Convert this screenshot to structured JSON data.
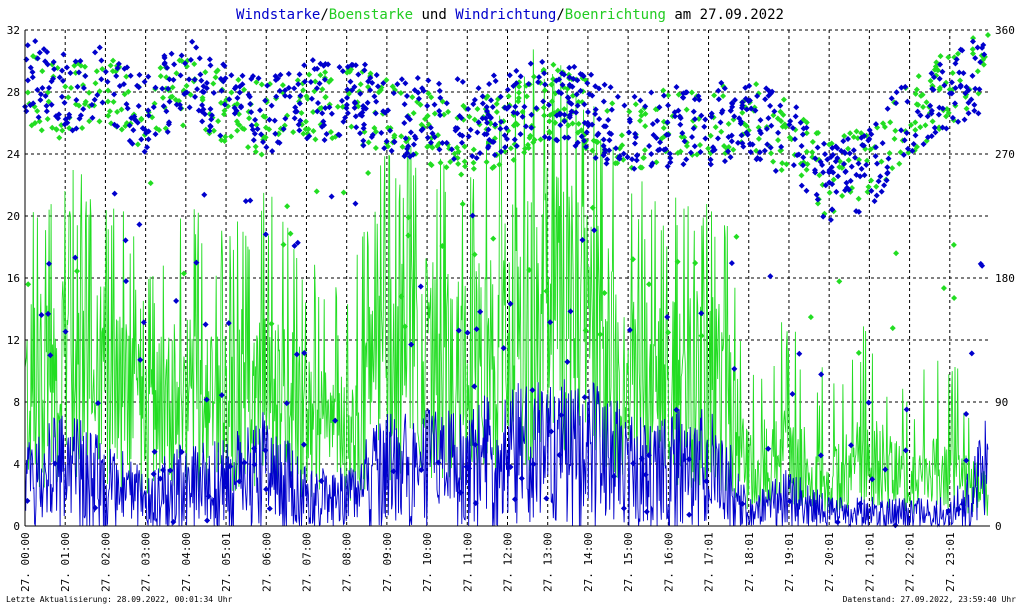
{
  "chart_data": {
    "type": "scatter",
    "title_parts": [
      {
        "text": "Windstarke",
        "color": "#0000cc"
      },
      {
        "text": "/",
        "color": "#000000"
      },
      {
        "text": "Boenstarke",
        "color": "#22cc22"
      },
      {
        "text": " und ",
        "color": "#000000"
      },
      {
        "text": "Windrichtung",
        "color": "#0000cc"
      },
      {
        "text": "/",
        "color": "#000000"
      },
      {
        "text": "Boenrichtung",
        "color": "#22cc22"
      },
      {
        "text": " am 27.09.2022",
        "color": "#000000"
      }
    ],
    "ylim_left": [
      0,
      32
    ],
    "yticks_left": [
      0,
      4,
      8,
      12,
      16,
      20,
      24,
      28,
      32
    ],
    "ylim_right": [
      0,
      360
    ],
    "yticks_right": [
      0,
      90,
      180,
      270,
      360
    ],
    "xlim_hours": [
      0,
      24
    ],
    "xtick_labels": [
      "27. 00:00",
      "27. 01:00",
      "27. 02:00",
      "27. 03:00",
      "27. 04:00",
      "27. 05:01",
      "27. 06:00",
      "27. 07:00",
      "27. 08:00",
      "27. 09:00",
      "27. 10:00",
      "27. 11:00",
      "27. 12:00",
      "27. 13:00",
      "27. 14:00",
      "27. 15:00",
      "27. 16:00",
      "27. 17:01",
      "27. 18:01",
      "27. 19:01",
      "27. 20:01",
      "27. 21:01",
      "27. 22:01",
      "27. 23:01"
    ],
    "grid": true,
    "colors": {
      "wind": "#0000cc",
      "gust": "#22dd22",
      "grid": "#000000"
    },
    "series": [
      {
        "name": "Windstarke",
        "kind": "line",
        "axis": "left",
        "x": [
          0,
          1,
          2,
          3,
          4,
          5,
          6,
          7,
          8,
          9,
          10,
          11,
          12,
          13,
          14,
          15,
          16,
          17,
          17.5,
          18,
          19,
          20,
          21,
          22,
          23,
          23.5,
          23.95
        ],
        "y": [
          3,
          4,
          3,
          2,
          3,
          3,
          4,
          2,
          2,
          4,
          4,
          4,
          5,
          5,
          5,
          4,
          4,
          4,
          3,
          1,
          2,
          1,
          1,
          1,
          1,
          2,
          4
        ]
      },
      {
        "name": "Boenstarke",
        "kind": "line",
        "axis": "left",
        "x": [
          0,
          1,
          2,
          3,
          4,
          5,
          6,
          7,
          8,
          9,
          10,
          11,
          12,
          13,
          14,
          15,
          16,
          17,
          17.5,
          18,
          19,
          20,
          21,
          22,
          23,
          23.5,
          23.95
        ],
        "y": [
          9,
          10,
          10,
          7,
          9,
          8,
          10,
          7,
          6,
          11,
          11,
          10,
          13,
          15,
          13,
          10,
          9,
          10,
          8,
          4,
          5,
          3,
          5,
          3,
          4,
          3,
          2
        ]
      },
      {
        "name": "Windrichtung",
        "kind": "scatter",
        "axis": "right",
        "x": [
          0,
          1,
          2,
          3,
          4,
          5,
          6,
          7,
          8,
          9,
          10,
          11,
          12,
          13,
          14,
          15,
          16,
          17,
          18,
          19,
          20,
          21,
          22,
          23,
          23.8
        ],
        "y": [
          330,
          315,
          320,
          300,
          325,
          310,
          295,
          310,
          310,
          300,
          295,
          295,
          300,
          310,
          300,
          285,
          290,
          290,
          300,
          280,
          250,
          260,
          300,
          320,
          330
        ]
      },
      {
        "name": "Boenrichtung",
        "kind": "scatter",
        "axis": "right",
        "x": [
          0,
          1,
          2,
          3,
          4,
          5,
          6,
          7,
          8,
          9,
          10,
          11,
          12,
          13,
          14,
          15,
          16,
          17,
          18,
          19,
          20,
          21,
          22,
          23,
          23.8
        ],
        "y": [
          320,
          305,
          320,
          300,
          315,
          305,
          295,
          305,
          305,
          300,
          290,
          280,
          290,
          310,
          300,
          285,
          290,
          290,
          300,
          280,
          250,
          265,
          295,
          320,
          335
        ]
      }
    ]
  },
  "footer": {
    "left": "Letzte Aktualisierung: 28.09.2022, 00:01:34 Uhr",
    "right": "Datenstand: 27.09.2022, 23:59:40 Uhr"
  }
}
